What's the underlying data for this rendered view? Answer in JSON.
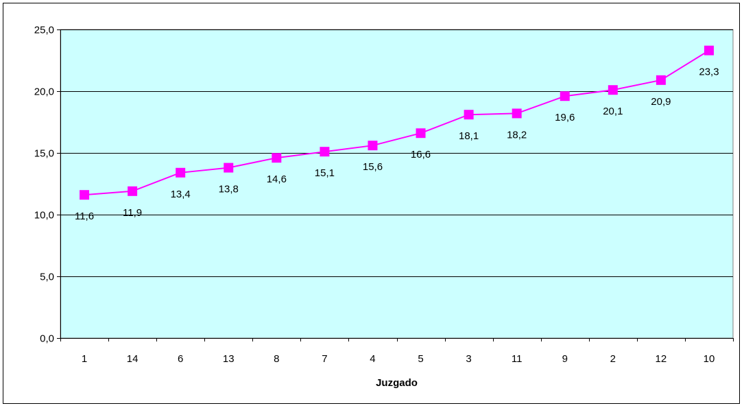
{
  "chart_data": {
    "type": "line",
    "title": "",
    "xlabel": "Juzgado",
    "ylabel": "",
    "categories": [
      "1",
      "14",
      "6",
      "13",
      "8",
      "7",
      "4",
      "5",
      "3",
      "11",
      "9",
      "2",
      "12",
      "10"
    ],
    "series": [
      {
        "values": [
          11.6,
          11.9,
          13.4,
          13.8,
          14.6,
          15.1,
          15.6,
          16.6,
          18.1,
          18.2,
          19.6,
          20.1,
          20.9,
          23.3
        ],
        "labels": [
          "11,6",
          "11,9",
          "13,4",
          "13,8",
          "14,6",
          "15,1",
          "15,6",
          "16,6",
          "18,1",
          "18,2",
          "19,6",
          "20,1",
          "20,9",
          "23,3"
        ],
        "color": "#ff00ff"
      }
    ],
    "ylim": [
      0,
      25
    ],
    "yticks": [
      0,
      5,
      10,
      15,
      20,
      25
    ],
    "ytick_labels": [
      "0,0",
      "5,0",
      "10,0",
      "15,0",
      "20,0",
      "25,0"
    ],
    "grid": true,
    "plot_background": "#ccffff",
    "gridline_color": "#000000",
    "marker": "square"
  }
}
